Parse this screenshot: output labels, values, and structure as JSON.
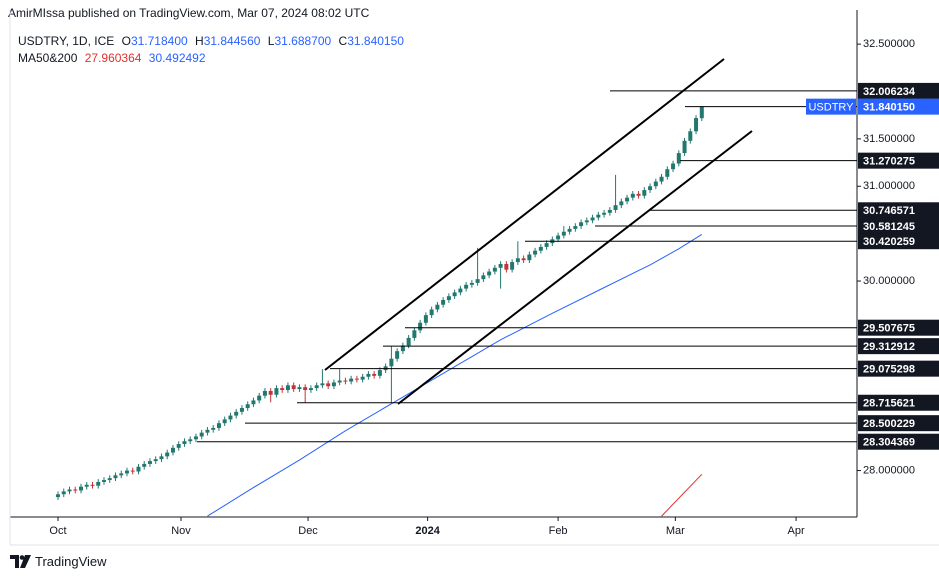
{
  "chart_data": {
    "type": "candlestick",
    "published": "AmirMIssa published on TradingView.com, Mar 07, 2024 08:02 UTC",
    "symbol": "USDTRY, 1D, ICE",
    "last_keys": [
      "O",
      "H",
      "L",
      "C"
    ],
    "last_labels": [
      "31.718400",
      "31.844560",
      "31.688700",
      "31.840150"
    ],
    "ma_label": "MA50&200",
    "brand": "TradingView",
    "up_color": "#22786f",
    "down_color": "#c2333a",
    "xlim": [
      -8.35,
      139
    ],
    "ylim": [
      27.51,
      32.86
    ],
    "xticks": [
      {
        "value": 0,
        "label": "Oct"
      },
      {
        "value": 21.4,
        "label": "Nov"
      },
      {
        "value": 43.5,
        "label": "Dec"
      },
      {
        "value": 64.3,
        "label": "2024"
      },
      {
        "value": 87,
        "label": "Feb"
      },
      {
        "value": 107.4,
        "label": "Mar"
      },
      {
        "value": 128.4,
        "label": "Apr"
      }
    ],
    "yticks": [
      {
        "value": 32.5,
        "label": "32.500000"
      },
      {
        "value": 31.5,
        "label": "31.500000"
      },
      {
        "value": 31.0,
        "label": "31.000000"
      },
      {
        "value": 30.0,
        "label": "30.000000"
      },
      {
        "value": 28.0,
        "label": "28.000000"
      }
    ],
    "levels": [
      32.006234,
      31.270275,
      30.746571,
      30.581245,
      30.420259,
      29.507675,
      29.312912,
      29.075298,
      28.715621,
      28.500229,
      28.304369
    ],
    "last_price": {
      "name": "USDTRY",
      "value": 31.84015,
      "label": "31.840150",
      "color": "#2962ff"
    },
    "ma": [
      {
        "color": "#e03131",
        "x": [
          105,
          112
        ],
        "values": [
          27.52,
          27.960364
        ]
      },
      {
        "color": "#2962ff",
        "x": [
          26,
          34,
          42,
          50,
          59,
          68,
          77,
          86,
          94,
          103,
          108,
          112
        ],
        "values": [
          27.52,
          27.82,
          28.11,
          28.42,
          28.74,
          29.06,
          29.38,
          29.66,
          29.9,
          30.17,
          30.34,
          30.492492
        ]
      }
    ],
    "candles": [
      [
        27.72,
        27.78,
        27.69,
        27.75
      ],
      [
        27.75,
        27.81,
        27.72,
        27.78
      ],
      [
        27.78,
        27.83,
        27.75,
        27.8
      ],
      [
        27.8,
        27.83,
        27.76,
        27.79
      ],
      [
        27.79,
        27.86,
        27.76,
        27.83
      ],
      [
        27.83,
        27.88,
        27.8,
        27.85
      ],
      [
        27.85,
        27.88,
        27.81,
        27.84
      ],
      [
        27.84,
        27.91,
        27.81,
        27.88
      ],
      [
        27.88,
        27.93,
        27.85,
        27.9
      ],
      [
        27.9,
        27.95,
        27.87,
        27.92
      ],
      [
        27.92,
        27.98,
        27.89,
        27.95
      ],
      [
        27.95,
        28.0,
        27.92,
        27.97
      ],
      [
        27.97,
        28.03,
        27.94,
        28.0
      ],
      [
        28.0,
        28.03,
        27.96,
        27.99
      ],
      [
        27.99,
        28.07,
        27.96,
        28.04
      ],
      [
        28.04,
        28.1,
        28.01,
        28.07
      ],
      [
        28.07,
        28.13,
        28.04,
        28.1
      ],
      [
        28.1,
        28.15,
        28.07,
        28.12
      ],
      [
        28.12,
        28.18,
        28.09,
        28.15
      ],
      [
        28.15,
        28.22,
        28.12,
        28.19
      ],
      [
        28.19,
        28.27,
        28.16,
        28.24
      ],
      [
        28.24,
        28.31,
        28.21,
        28.28
      ],
      [
        28.28,
        28.34,
        28.25,
        28.31
      ],
      [
        28.31,
        28.36,
        28.28,
        28.33
      ],
      [
        28.33,
        28.39,
        28.3,
        28.36
      ],
      [
        28.36,
        28.43,
        28.33,
        28.4
      ],
      [
        28.4,
        28.46,
        28.37,
        28.43
      ],
      [
        28.43,
        28.48,
        28.4,
        28.45
      ],
      [
        28.45,
        28.53,
        28.42,
        28.5
      ],
      [
        28.5,
        28.57,
        28.47,
        28.54
      ],
      [
        28.54,
        28.61,
        28.51,
        28.58
      ],
      [
        28.58,
        28.65,
        28.55,
        28.62
      ],
      [
        28.62,
        28.69,
        28.59,
        28.66
      ],
      [
        28.66,
        28.73,
        28.63,
        28.7
      ],
      [
        28.7,
        28.77,
        28.67,
        28.74
      ],
      [
        28.74,
        28.82,
        28.71,
        28.79
      ],
      [
        28.79,
        28.87,
        28.76,
        28.84
      ],
      [
        28.84,
        28.87,
        28.72,
        28.8
      ],
      [
        28.8,
        28.9,
        28.77,
        28.87
      ],
      [
        28.87,
        28.9,
        28.82,
        28.85
      ],
      [
        28.85,
        28.93,
        28.82,
        28.9
      ],
      [
        28.9,
        28.93,
        28.83,
        28.86
      ],
      [
        28.86,
        28.91,
        28.83,
        28.88
      ],
      [
        28.88,
        28.91,
        28.72,
        28.85
      ],
      [
        28.85,
        28.9,
        28.82,
        28.87
      ],
      [
        28.87,
        28.93,
        28.84,
        28.9
      ],
      [
        28.9,
        29.07,
        28.87,
        28.92
      ],
      [
        28.92,
        28.95,
        28.86,
        28.89
      ],
      [
        28.89,
        28.96,
        28.86,
        28.93
      ],
      [
        28.93,
        29.07,
        28.9,
        28.95
      ],
      [
        28.95,
        28.98,
        28.91,
        28.94
      ],
      [
        28.94,
        29.0,
        28.91,
        28.97
      ],
      [
        28.97,
        29.0,
        28.93,
        28.96
      ],
      [
        28.96,
        29.02,
        28.93,
        28.99
      ],
      [
        28.99,
        29.05,
        28.96,
        29.02
      ],
      [
        29.02,
        29.05,
        28.97,
        29.0
      ],
      [
        29.0,
        29.09,
        28.97,
        29.06
      ],
      [
        29.06,
        29.13,
        29.03,
        29.1
      ],
      [
        29.1,
        29.31,
        28.72,
        29.18
      ],
      [
        29.18,
        29.29,
        29.15,
        29.26
      ],
      [
        29.26,
        29.35,
        29.23,
        29.32
      ],
      [
        29.32,
        29.43,
        29.29,
        29.4
      ],
      [
        29.4,
        29.51,
        29.37,
        29.48
      ],
      [
        29.48,
        29.59,
        29.45,
        29.56
      ],
      [
        29.56,
        29.67,
        29.53,
        29.64
      ],
      [
        29.64,
        29.73,
        29.61,
        29.7
      ],
      [
        29.7,
        29.78,
        29.67,
        29.75
      ],
      [
        29.75,
        29.83,
        29.72,
        29.8
      ],
      [
        29.8,
        29.87,
        29.77,
        29.84
      ],
      [
        29.84,
        29.91,
        29.81,
        29.88
      ],
      [
        29.88,
        29.95,
        29.85,
        29.92
      ],
      [
        29.92,
        29.99,
        29.89,
        29.96
      ],
      [
        29.96,
        30.01,
        29.93,
        29.98
      ],
      [
        29.98,
        30.35,
        29.95,
        30.02
      ],
      [
        30.02,
        30.09,
        29.99,
        30.06
      ],
      [
        30.06,
        30.13,
        30.03,
        30.1
      ],
      [
        30.1,
        30.17,
        30.07,
        30.14
      ],
      [
        30.14,
        30.21,
        29.92,
        30.18
      ],
      [
        30.18,
        30.21,
        30.09,
        30.12
      ],
      [
        30.12,
        30.23,
        30.09,
        30.2
      ],
      [
        30.2,
        30.42,
        30.17,
        30.24
      ],
      [
        30.24,
        30.27,
        30.19,
        30.22
      ],
      [
        30.22,
        30.31,
        30.19,
        30.28
      ],
      [
        30.28,
        30.35,
        30.25,
        30.32
      ],
      [
        30.32,
        30.39,
        30.29,
        30.36
      ],
      [
        30.36,
        30.43,
        30.33,
        30.4
      ],
      [
        30.4,
        30.47,
        30.37,
        30.44
      ],
      [
        30.44,
        30.51,
        30.41,
        30.48
      ],
      [
        30.48,
        30.58,
        30.45,
        30.52
      ],
      [
        30.52,
        30.58,
        30.49,
        30.55
      ],
      [
        30.55,
        30.61,
        30.52,
        30.58
      ],
      [
        30.58,
        30.65,
        30.55,
        30.62
      ],
      [
        30.62,
        30.67,
        30.59,
        30.64
      ],
      [
        30.64,
        30.7,
        30.61,
        30.67
      ],
      [
        30.67,
        30.73,
        30.64,
        30.7
      ],
      [
        30.7,
        30.75,
        30.67,
        30.72
      ],
      [
        30.72,
        30.78,
        30.69,
        30.75
      ],
      [
        30.75,
        31.12,
        30.72,
        30.8
      ],
      [
        30.8,
        30.87,
        30.77,
        30.84
      ],
      [
        30.84,
        30.91,
        30.81,
        30.88
      ],
      [
        30.88,
        30.95,
        30.85,
        30.92
      ],
      [
        30.92,
        30.95,
        30.87,
        30.9
      ],
      [
        30.9,
        30.99,
        30.87,
        30.96
      ],
      [
        30.96,
        31.03,
        30.93,
        31.0
      ],
      [
        31.0,
        31.08,
        30.97,
        31.05
      ],
      [
        31.05,
        31.13,
        31.02,
        31.1
      ],
      [
        31.1,
        31.21,
        31.07,
        31.18
      ],
      [
        31.18,
        31.27,
        31.15,
        31.24
      ],
      [
        31.24,
        31.38,
        31.21,
        31.35
      ],
      [
        31.35,
        31.51,
        31.32,
        31.48
      ],
      [
        31.48,
        31.61,
        31.45,
        31.58
      ],
      [
        31.58,
        31.75,
        31.55,
        31.72
      ],
      [
        31.7184,
        31.84456,
        31.6887,
        31.84015
      ]
    ]
  }
}
